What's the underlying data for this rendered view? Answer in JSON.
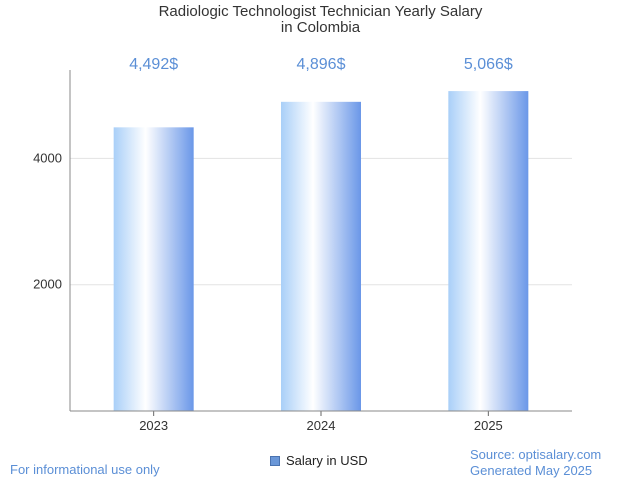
{
  "title_line1": "Radiologic Technologist Technician Yearly Salary",
  "title_line2": "in Colombia",
  "footer": {
    "disclaimer": "For informational use only",
    "source": "Source: optisalary.com",
    "generated": "Generated May 2025"
  },
  "legend_label": "Salary in USD",
  "colors": {
    "bar_dark": "#6a97e8",
    "bar_light": "#ffffff",
    "bar_blue": "#a9cff8",
    "label": "#5b8fd6"
  },
  "chart_data": {
    "type": "bar",
    "title": "Radiologic Technologist Technician Yearly Salary in Colombia",
    "categories": [
      "2023",
      "2024",
      "2025"
    ],
    "series": [
      {
        "name": "Salary in USD",
        "values": [
          4492,
          4896,
          5066
        ]
      }
    ],
    "data_labels": [
      "4,492$",
      "4,896$",
      "5,066$"
    ],
    "yticks": [
      2000,
      4000
    ],
    "ylim": [
      0,
      5400
    ],
    "xlabel": "",
    "ylabel": "",
    "grid": true,
    "legend": "bottom-center"
  }
}
